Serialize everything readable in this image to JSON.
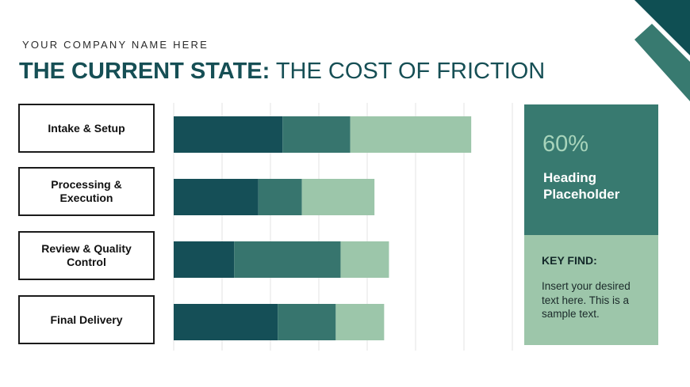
{
  "header": {
    "company": "YOUR COMPANY NAME HERE",
    "title_bold": "THE CURRENT STATE:",
    "title_light": "THE COST OF FRICTION"
  },
  "colors": {
    "dark": "#154f57",
    "mid": "#37756e",
    "light": "#9cc6aa",
    "side_top": "#387a70",
    "side_bottom": "#9dc6aa"
  },
  "chart_data": {
    "type": "bar",
    "orientation": "horizontal",
    "stacked": true,
    "categories": [
      "Intake & Setup",
      "Processing & Execution",
      "Review & Quality Control",
      "Final Delivery"
    ],
    "series": [
      {
        "values": [
          2.25,
          1.75,
          1.25,
          2.15
        ]
      },
      {
        "values": [
          1.4,
          0.9,
          2.2,
          1.2
        ]
      },
      {
        "values": [
          2.5,
          1.5,
          1.0,
          1.0
        ]
      }
    ],
    "xlim": [
      0,
      7
    ],
    "grid": true
  },
  "labels": [
    {
      "line1": "Intake & Setup",
      "line2": ""
    },
    {
      "line1": "Processing &",
      "line2": "Execution"
    },
    {
      "line1": "Review & Quality",
      "line2": "Control"
    },
    {
      "line1": "Final Delivery",
      "line2": ""
    }
  ],
  "side": {
    "percent": "60%",
    "heading": "Heading Placeholder",
    "key_label": "KEY FIND:",
    "text": "Insert your desired text here. This is a sample text."
  }
}
